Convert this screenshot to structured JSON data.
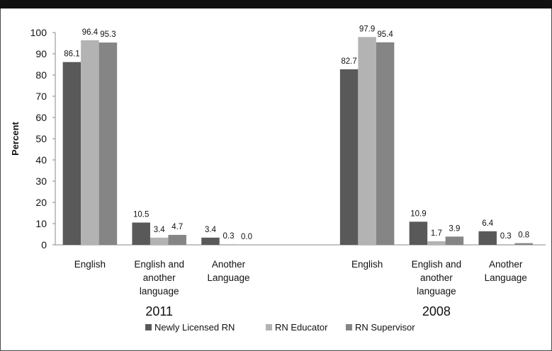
{
  "chart_data": {
    "type": "bar",
    "ylabel": "Percent",
    "ylim": [
      0,
      100
    ],
    "yticks": [
      0,
      10,
      20,
      30,
      40,
      50,
      60,
      70,
      80,
      90,
      100
    ],
    "grid": false,
    "legend_position": "bottom",
    "groups": [
      {
        "label": "2011",
        "categories": [
          "English",
          "English and another language",
          "Another Language"
        ]
      },
      {
        "label": "2008",
        "categories": [
          "English",
          "English and another language",
          "Another Language"
        ]
      }
    ],
    "series": [
      {
        "name": "Newly Licensed RN",
        "color": "#595959",
        "values": [
          86.1,
          10.5,
          3.4,
          82.7,
          10.9,
          6.4
        ],
        "labels": [
          "86.1",
          "10.5",
          "3.4",
          "82.7",
          "10.9",
          "6.4"
        ]
      },
      {
        "name": "RN Educator",
        "color": "#b3b3b3",
        "values": [
          96.4,
          3.4,
          0.3,
          97.9,
          1.7,
          0.3
        ],
        "labels": [
          "96.4",
          "3.4",
          "0.3",
          "97.9",
          "1.7",
          "0.3"
        ]
      },
      {
        "name": "RN Supervisor",
        "color": "#858585",
        "values": [
          95.3,
          4.7,
          0.0,
          95.4,
          3.9,
          0.8
        ],
        "labels": [
          "95.3",
          "4.7",
          "0.0",
          "95.4",
          "3.9",
          "0.8"
        ]
      }
    ]
  }
}
